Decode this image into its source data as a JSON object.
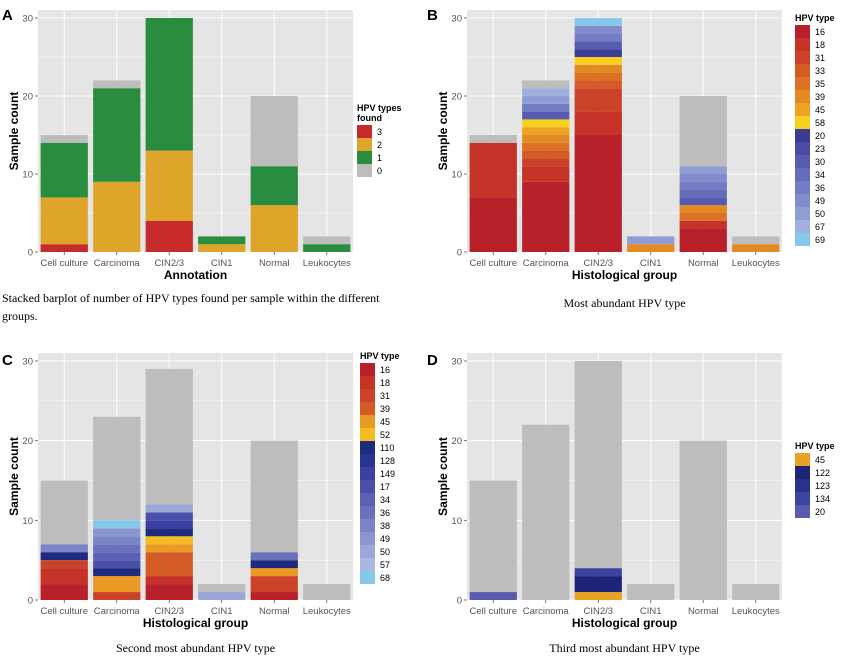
{
  "chart_data": [
    {
      "letter": "A",
      "type": "bar",
      "stacked": true,
      "categories": [
        "Cell culture",
        "Carcinoma",
        "CIN2/3",
        "CIN1",
        "Normal",
        "Leukocytes"
      ],
      "xlabel": "Annotation",
      "ylabel": "Sample count",
      "ylim": [
        0,
        30
      ],
      "yticks": [
        0,
        10,
        20,
        30
      ],
      "legend_title": "HPV types found",
      "legend_title_lines": [
        "HPV types",
        "found"
      ],
      "legend_position": "right",
      "series": [
        {
          "name": "3",
          "color": "#c62a2a",
          "values": [
            1,
            0,
            4,
            0,
            0,
            0
          ]
        },
        {
          "name": "2",
          "color": "#dea52a",
          "values": [
            6,
            9,
            9,
            1,
            6,
            0
          ]
        },
        {
          "name": "1",
          "color": "#2a8c3e",
          "values": [
            7,
            12,
            17,
            1,
            5,
            1
          ]
        },
        {
          "name": "0",
          "color": "#bdbdbd",
          "values": [
            1,
            1,
            0,
            0,
            9,
            1
          ]
        }
      ],
      "caption": "Stacked barplot of number of HPV types found per sample within the different groups.",
      "caption_lines": [
        "Stacked barplot of number of HPV types found per sample within the different",
        "groups."
      ]
    },
    {
      "letter": "B",
      "type": "bar",
      "stacked": true,
      "categories": [
        "Cell culture",
        "Carcinoma",
        "CIN2/3",
        "CIN1",
        "Normal",
        "Leukocytes"
      ],
      "xlabel": "Histological group",
      "ylabel": "Sample count",
      "ylim": [
        0,
        30
      ],
      "yticks": [
        0,
        10,
        20,
        30
      ],
      "legend_title": "HPV type",
      "legend_position": "right",
      "series": [
        {
          "name": "16",
          "color": "#b8202a",
          "values": [
            7,
            9,
            15,
            0,
            3,
            0
          ]
        },
        {
          "name": "18",
          "color": "#c43228",
          "values": [
            7,
            2,
            3,
            0,
            1,
            0
          ]
        },
        {
          "name": "31",
          "color": "#cc4228",
          "values": [
            0,
            1,
            3,
            0,
            0,
            0
          ]
        },
        {
          "name": "33",
          "color": "#d45a26",
          "values": [
            0,
            1,
            1,
            0,
            0,
            0
          ]
        },
        {
          "name": "35",
          "color": "#dc7226",
          "values": [
            0,
            1,
            1,
            0,
            1,
            0
          ]
        },
        {
          "name": "39",
          "color": "#e48a24",
          "values": [
            0,
            1,
            1,
            1,
            1,
            1
          ]
        },
        {
          "name": "45",
          "color": "#eca222",
          "values": [
            0,
            1,
            0,
            0,
            0,
            0
          ]
        },
        {
          "name": "58",
          "color": "#f8d020",
          "values": [
            0,
            1,
            1,
            0,
            0,
            0
          ]
        },
        {
          "name": "20",
          "color": "#3a3c96",
          "values": [
            0,
            0,
            1,
            0,
            0,
            0
          ]
        },
        {
          "name": "23",
          "color": "#4a4ca4",
          "values": [
            0,
            0,
            0,
            0,
            0,
            0
          ]
        },
        {
          "name": "30",
          "color": "#585cb0",
          "values": [
            0,
            1,
            1,
            0,
            1,
            0
          ]
        },
        {
          "name": "34",
          "color": "#666cba",
          "values": [
            0,
            0,
            0,
            0,
            1,
            0
          ]
        },
        {
          "name": "36",
          "color": "#747cc4",
          "values": [
            0,
            1,
            1,
            0,
            1,
            0
          ]
        },
        {
          "name": "49",
          "color": "#828ccc",
          "values": [
            0,
            0,
            1,
            0,
            1,
            0
          ]
        },
        {
          "name": "50",
          "color": "#909cd4",
          "values": [
            0,
            1,
            0,
            1,
            1,
            0
          ]
        },
        {
          "name": "67",
          "color": "#9eb0dc",
          "values": [
            0,
            1,
            0,
            0,
            0,
            0
          ]
        },
        {
          "name": "69",
          "color": "#86c8ec",
          "values": [
            0,
            0,
            1,
            0,
            0,
            0
          ]
        },
        {
          "name": "none",
          "color": "#bdbdbd",
          "values": [
            1,
            1,
            0,
            0,
            9,
            1
          ],
          "legend": false
        }
      ],
      "caption": "Most abundant HPV type"
    },
    {
      "letter": "C",
      "type": "bar",
      "stacked": true,
      "categories": [
        "Cell culture",
        "Carcinoma",
        "CIN2/3",
        "CIN1",
        "Normal",
        "Leukocytes"
      ],
      "xlabel": "Histological group",
      "ylabel": "Sample count",
      "ylim": [
        0,
        30
      ],
      "yticks": [
        0,
        10,
        20,
        30
      ],
      "legend_title": "HPV type",
      "legend_position": "right",
      "series": [
        {
          "name": "16",
          "color": "#b8202a",
          "values": [
            2,
            0,
            2,
            0,
            1,
            0
          ]
        },
        {
          "name": "18",
          "color": "#c43228",
          "values": [
            2,
            0,
            1,
            0,
            0,
            0
          ]
        },
        {
          "name": "31",
          "color": "#cc4228",
          "values": [
            1,
            1,
            0,
            0,
            2,
            0
          ]
        },
        {
          "name": "39",
          "color": "#d45a26",
          "values": [
            0,
            0,
            3,
            0,
            0,
            0
          ]
        },
        {
          "name": "45",
          "color": "#e89a24",
          "values": [
            0,
            2,
            1,
            0,
            1,
            0
          ]
        },
        {
          "name": "52",
          "color": "#f4bc22",
          "values": [
            0,
            0,
            1,
            0,
            0,
            0
          ]
        },
        {
          "name": "110",
          "color": "#1e2a7c",
          "values": [
            1,
            1,
            1,
            0,
            1,
            0
          ]
        },
        {
          "name": "128",
          "color": "#283492",
          "values": [
            0,
            0,
            0,
            0,
            0,
            0
          ]
        },
        {
          "name": "149",
          "color": "#3a40a0",
          "values": [
            0,
            0,
            1,
            0,
            0,
            0
          ]
        },
        {
          "name": "17",
          "color": "#4a50aa",
          "values": [
            0,
            1,
            1,
            0,
            0,
            0
          ]
        },
        {
          "name": "34",
          "color": "#5a60b4",
          "values": [
            0,
            1,
            0,
            0,
            0,
            0
          ]
        },
        {
          "name": "36",
          "color": "#6a70bc",
          "values": [
            0,
            1,
            0,
            0,
            1,
            0
          ]
        },
        {
          "name": "38",
          "color": "#7a84c6",
          "values": [
            1,
            1,
            0,
            0,
            0,
            0
          ]
        },
        {
          "name": "49",
          "color": "#8a96ce",
          "values": [
            0,
            1,
            0,
            0,
            0,
            0
          ]
        },
        {
          "name": "50",
          "color": "#9aa8d8",
          "values": [
            0,
            0,
            1,
            1,
            0,
            0
          ]
        },
        {
          "name": "57",
          "color": "#a8b8de",
          "values": [
            0,
            0,
            0,
            0,
            0,
            0
          ]
        },
        {
          "name": "68",
          "color": "#86c8ec",
          "values": [
            0,
            1,
            0,
            0,
            0,
            0
          ]
        },
        {
          "name": "none",
          "color": "#bdbdbd",
          "values": [
            8,
            13,
            17,
            1,
            14,
            2
          ],
          "legend": false
        }
      ],
      "caption": "Second most abundant HPV type"
    },
    {
      "letter": "D",
      "type": "bar",
      "stacked": true,
      "categories": [
        "Cell culture",
        "Carcinoma",
        "CIN2/3",
        "CIN1",
        "Normal",
        "Leukocytes"
      ],
      "xlabel": "Histological group",
      "ylabel": "Sample count",
      "ylim": [
        0,
        30
      ],
      "yticks": [
        0,
        10,
        20,
        30
      ],
      "legend_title": "HPV type",
      "legend_position": "right",
      "series": [
        {
          "name": "45",
          "color": "#e8a224",
          "values": [
            0,
            0,
            1,
            0,
            0,
            0
          ]
        },
        {
          "name": "122",
          "color": "#1e2478",
          "values": [
            0,
            0,
            2,
            0,
            0,
            0
          ]
        },
        {
          "name": "123",
          "color": "#2a328e",
          "values": [
            0,
            0,
            0,
            0,
            0,
            0
          ]
        },
        {
          "name": "134",
          "color": "#3c44a2",
          "values": [
            0,
            0,
            1,
            0,
            0,
            0
          ]
        },
        {
          "name": "20",
          "color": "#5a5aae",
          "values": [
            1,
            0,
            0,
            0,
            0,
            0
          ]
        },
        {
          "name": "none",
          "color": "#bdbdbd",
          "values": [
            14,
            22,
            26,
            2,
            20,
            2
          ],
          "legend": false
        }
      ],
      "caption": "Third most abundant HPV type"
    }
  ]
}
